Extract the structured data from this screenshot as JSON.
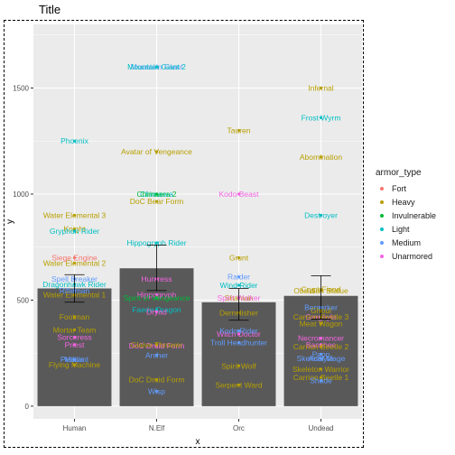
{
  "chart_data": {
    "type": "bar",
    "title": "Title",
    "xlabel": "x",
    "ylabel": "y",
    "ylim": [
      -60,
      1800
    ],
    "yticks": [
      0,
      500,
      1000,
      1500
    ],
    "categories": [
      "Human",
      "N.Elf",
      "Orc",
      "Undead"
    ],
    "bars": [
      {
        "category": "Human",
        "value": 555,
        "error_low": 490,
        "error_high": 620
      },
      {
        "category": "N.Elf",
        "value": 650,
        "error_low": 545,
        "error_high": 760
      },
      {
        "category": "Orc",
        "value": 490,
        "error_low": 405,
        "error_high": 555
      },
      {
        "category": "Undead",
        "value": 520,
        "error_low": 410,
        "error_high": 615
      }
    ],
    "legend": {
      "title": "armor_type",
      "position": "right",
      "items": [
        {
          "label": "Fort",
          "color": "#F8766D"
        },
        {
          "label": "Heavy",
          "color": "#B79F00"
        },
        {
          "label": "Invulnerable",
          "color": "#00BA38"
        },
        {
          "label": "Light",
          "color": "#00BFC4"
        },
        {
          "label": "Medium",
          "color": "#619CFF"
        },
        {
          "label": "Unarmored",
          "color": "#F564E3"
        }
      ]
    },
    "grid": true,
    "points": [
      {
        "label": "Water Elemental 3",
        "x": "Human",
        "y": 900,
        "armor": "Heavy"
      },
      {
        "label": "Knight",
        "x": "Human",
        "y": 835,
        "armor": "Heavy"
      },
      {
        "label": "Water Elemental 2",
        "x": "Human",
        "y": 675,
        "armor": "Heavy"
      },
      {
        "label": "Water Elemental 1",
        "x": "Human",
        "y": 525,
        "armor": "Heavy"
      },
      {
        "label": "Footman",
        "x": "Human",
        "y": 420,
        "armor": "Heavy"
      },
      {
        "label": "Mortar Team",
        "x": "Human",
        "y": 360,
        "armor": "Heavy"
      },
      {
        "label": "Flying Machine",
        "x": "Human",
        "y": 195,
        "armor": "Heavy"
      },
      {
        "label": "Phoenix",
        "x": "Human",
        "y": 1250,
        "armor": "Light"
      },
      {
        "label": "Gryphon Rider",
        "x": "Human",
        "y": 825,
        "armor": "Light"
      },
      {
        "label": "Dragonhawk Rider",
        "x": "Human",
        "y": 575,
        "armor": "Light"
      },
      {
        "label": "Spell Breaker",
        "x": "Human",
        "y": 600,
        "armor": "Medium"
      },
      {
        "label": "Rifleman",
        "x": "Human",
        "y": 545,
        "armor": "Medium"
      },
      {
        "label": "Militia",
        "x": "Human",
        "y": 220,
        "armor": "Medium"
      },
      {
        "label": "Peasant",
        "x": "Human",
        "y": 220,
        "armor": "Medium"
      },
      {
        "label": "Sorceress",
        "x": "Human",
        "y": 325,
        "armor": "Unarmored"
      },
      {
        "label": "Priest",
        "x": "Human",
        "y": 290,
        "armor": "Unarmored"
      },
      {
        "label": "Siege Engine",
        "x": "Human",
        "y": 700,
        "armor": "Fort"
      },
      {
        "label": "Mountain Giant",
        "x": "N.Elf",
        "y": 1600,
        "armor": "Medium"
      },
      {
        "label": "Mountain Giant 2",
        "x": "N.Elf",
        "y": 1600,
        "armor": "Light"
      },
      {
        "label": "Avatar of Vengeance",
        "x": "N.Elf",
        "y": 1200,
        "armor": "Heavy"
      },
      {
        "label": "Chimaera",
        "x": "N.Elf",
        "y": 1000,
        "armor": "Light"
      },
      {
        "label": "Chimaera 2",
        "x": "N.Elf",
        "y": 1000,
        "armor": "Invulnerable"
      },
      {
        "label": "DoC Bear Form",
        "x": "N.Elf",
        "y": 965,
        "armor": "Heavy"
      },
      {
        "label": "Hippogryph Rider",
        "x": "N.Elf",
        "y": 770,
        "armor": "Light"
      },
      {
        "label": "Huntress",
        "x": "N.Elf",
        "y": 600,
        "armor": "Unarmored"
      },
      {
        "label": "Hippogryph",
        "x": "N.Elf",
        "y": 525,
        "armor": "Unarmored"
      },
      {
        "label": "Spirit of Vengeance",
        "x": "N.Elf",
        "y": 510,
        "armor": "Invulnerable"
      },
      {
        "label": "Faerie Dragon",
        "x": "N.Elf",
        "y": 455,
        "armor": "Light"
      },
      {
        "label": "Dryad",
        "x": "N.Elf",
        "y": 445,
        "armor": "Unarmored"
      },
      {
        "label": "DoC Druid Form",
        "x": "N.Elf",
        "y": 285,
        "armor": "Unarmored"
      },
      {
        "label": "Glaive Thrower",
        "x": "N.Elf",
        "y": 290,
        "armor": "Heavy"
      },
      {
        "label": "Archer",
        "x": "N.Elf",
        "y": 240,
        "armor": "Medium"
      },
      {
        "label": "DoC Druid Form",
        "x": "N.Elf",
        "y": 125,
        "armor": "Heavy"
      },
      {
        "label": "Wisp",
        "x": "N.Elf",
        "y": 70,
        "armor": "Medium"
      },
      {
        "label": "Tauren",
        "x": "Orc",
        "y": 1300,
        "armor": "Heavy"
      },
      {
        "label": "Kodo Beast",
        "x": "Orc",
        "y": 1000,
        "armor": "Unarmored"
      },
      {
        "label": "Grunt",
        "x": "Orc",
        "y": 700,
        "armor": "Heavy"
      },
      {
        "label": "Raider",
        "x": "Orc",
        "y": 610,
        "armor": "Medium"
      },
      {
        "label": "Wind Rider",
        "x": "Orc",
        "y": 570,
        "armor": "Light"
      },
      {
        "label": "Shaman",
        "x": "Orc",
        "y": 510,
        "armor": "Heavy"
      },
      {
        "label": "Spirit Walker",
        "x": "Orc",
        "y": 510,
        "armor": "Unarmored"
      },
      {
        "label": "Demolisher",
        "x": "Orc",
        "y": 440,
        "armor": "Heavy"
      },
      {
        "label": "Troll Headhunter",
        "x": "Orc",
        "y": 300,
        "armor": "Medium"
      },
      {
        "label": "Spirit Wolf",
        "x": "Orc",
        "y": 190,
        "armor": "Heavy"
      },
      {
        "label": "Serpent Ward",
        "x": "Orc",
        "y": 100,
        "armor": "Heavy"
      },
      {
        "label": "Infernal",
        "x": "Undead",
        "y": 1500,
        "armor": "Heavy"
      },
      {
        "label": "Frost Wyrm",
        "x": "Undead",
        "y": 1360,
        "armor": "Light"
      },
      {
        "label": "Abomination",
        "x": "Undead",
        "y": 1175,
        "armor": "Heavy"
      },
      {
        "label": "Destroyer",
        "x": "Undead",
        "y": 900,
        "armor": "Light"
      },
      {
        "label": "Obsidian Statue",
        "x": "Undead",
        "y": 545,
        "armor": "Heavy"
      },
      {
        "label": "Crypt Fiend",
        "x": "Undead",
        "y": 550,
        "armor": "Heavy"
      },
      {
        "label": "Gargoyle",
        "x": "Undead",
        "y": 420,
        "armor": "Unarmored"
      },
      {
        "label": "Carrion Beetle 3",
        "x": "Undead",
        "y": 420,
        "armor": "Heavy"
      },
      {
        "label": "Meat Wagon",
        "x": "Undead",
        "y": 390,
        "armor": "Heavy"
      },
      {
        "label": "Berserker",
        "x": "Undead",
        "y": 465,
        "armor": "Medium"
      },
      {
        "label": "Ghoul",
        "x": "Undead",
        "y": 450,
        "armor": "Heavy"
      },
      {
        "label": "Necromancer",
        "x": "Undead",
        "y": 320,
        "armor": "Unarmored"
      },
      {
        "label": "Banshee",
        "x": "Undead",
        "y": 290,
        "armor": "Unarmored"
      },
      {
        "label": "Carrion Beetle 2",
        "x": "Undead",
        "y": 280,
        "armor": "Heavy"
      },
      {
        "label": "Peon",
        "x": "Undead",
        "y": 245,
        "armor": "Medium"
      },
      {
        "label": "Acolyte",
        "x": "Undead",
        "y": 225,
        "armor": "Medium"
      },
      {
        "label": "Skeletal Mage",
        "x": "Undead",
        "y": 225,
        "armor": "Medium"
      },
      {
        "label": "Skeleton Warrior",
        "x": "Undead",
        "y": 175,
        "armor": "Heavy"
      },
      {
        "label": "Carrion Beetle 1",
        "x": "Undead",
        "y": 135,
        "armor": "Heavy"
      },
      {
        "label": "Shade",
        "x": "Undead",
        "y": 120,
        "armor": "Medium"
      },
      {
        "label": "Witch Doctor",
        "x": "Orc",
        "y": 340,
        "armor": "Unarmored"
      },
      {
        "label": "Kodo Rider",
        "x": "Orc",
        "y": 355,
        "armor": "Medium"
      }
    ]
  }
}
